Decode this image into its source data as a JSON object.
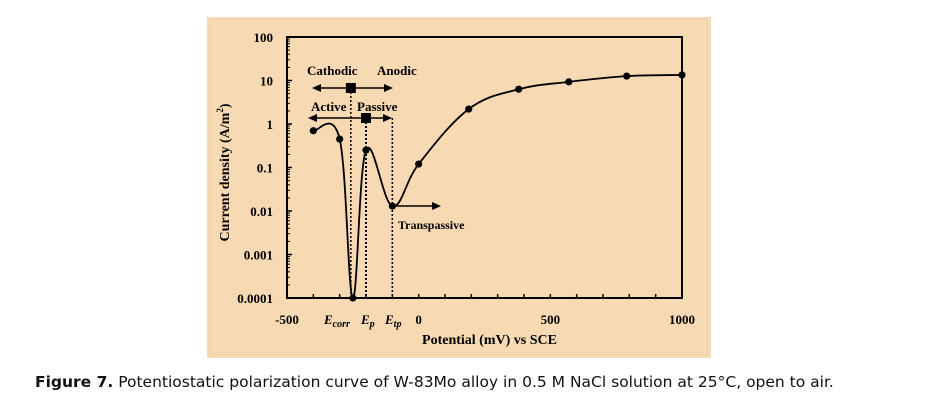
{
  "chart_data": {
    "type": "line",
    "title": "",
    "xlabel": "Potential (mV) vs SCE",
    "ylabel_main": "Current density (A/m",
    "ylabel_sup": "2",
    "ylabel_close": ")",
    "xlim": [
      -500,
      1000
    ],
    "ylim": [
      0.0001,
      100
    ],
    "yscale": "log",
    "grid": false,
    "x_ticks": [
      -500,
      0,
      500,
      1000
    ],
    "x_tick_labels": [
      "-500",
      "0",
      "500",
      "1000"
    ],
    "y_ticks": [
      100,
      10,
      1,
      0.1,
      0.01,
      0.001,
      0.0001
    ],
    "y_tick_labels": [
      "100",
      "10",
      "1",
      "0.1",
      "0.01",
      "0.001",
      "0.0001"
    ],
    "series": [
      {
        "name": "W-83Mo",
        "x": [
          -400,
          -300,
          -250,
          -200,
          -100,
          0,
          190,
          380,
          570,
          790,
          1000
        ],
        "y": [
          0.7,
          0.45,
          0.0001,
          0.25,
          0.013,
          0.12,
          2.2,
          6.3,
          9.3,
          12.6,
          13.4
        ]
      }
    ],
    "markers": {
      "Ecorr": -250,
      "Ep": -200,
      "Etp": -100
    },
    "annotations": {
      "cathodic": "Cathodic",
      "anodic": "Anodic",
      "active": "Active",
      "passive": "Passive",
      "transpassive": "Transpassive",
      "ecorr_main": "E",
      "ecorr_sub": "corr",
      "ep_main": "E",
      "ep_sub": "p",
      "etp_main": "E",
      "etp_sub": "tp"
    },
    "colors": {
      "background": "#f7d9b3",
      "line": "#000000"
    }
  },
  "caption": {
    "label": "Figure 7.",
    "text": " Potentiostatic polarization curve of W-83Mo alloy in 0.5 M NaCl solution at 25°C, open to air."
  }
}
